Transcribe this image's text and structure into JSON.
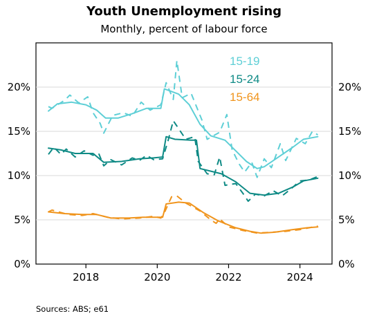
{
  "chart": {
    "title": "Youth Unemployment rising",
    "subtitle": "Monthly, percent of labour force",
    "source": "Sources: ABS; e61"
  },
  "chart_data": {
    "type": "line",
    "title": "Youth Unemployment rising",
    "subtitle": "Monthly, percent of labour force",
    "xlabel": "",
    "ylabel": "",
    "xlim": [
      2016.6,
      2024.9
    ],
    "ylim": [
      0,
      25
    ],
    "x_ticks": [
      2018,
      2020,
      2022,
      2024
    ],
    "x_tick_labels": [
      "2018",
      "2020",
      "2022",
      "2024"
    ],
    "y_ticks": [
      0,
      5,
      10,
      15,
      20
    ],
    "y_tick_labels": [
      "0%",
      "5%",
      "10%",
      "15%",
      "20%"
    ],
    "grid": "horizontal",
    "legend_position": "top-right",
    "series": [
      {
        "name": "15-19",
        "color": "#5ecfd6",
        "trend": [
          [
            2016.95,
            17.3
          ],
          [
            2017.2,
            18.1
          ],
          [
            2017.6,
            18.3
          ],
          [
            2018.0,
            18.0
          ],
          [
            2018.3,
            17.4
          ],
          [
            2018.55,
            16.5
          ],
          [
            2018.9,
            16.5
          ],
          [
            2019.3,
            17.0
          ],
          [
            2019.7,
            17.6
          ],
          [
            2020.1,
            17.6
          ],
          [
            2020.2,
            19.8
          ],
          [
            2020.6,
            19.2
          ],
          [
            2020.9,
            18.0
          ],
          [
            2021.2,
            15.8
          ],
          [
            2021.5,
            14.5
          ],
          [
            2021.9,
            14.0
          ],
          [
            2022.2,
            12.8
          ],
          [
            2022.5,
            11.6
          ],
          [
            2022.8,
            10.8
          ],
          [
            2023.0,
            11.0
          ],
          [
            2023.4,
            12.1
          ],
          [
            2023.8,
            13.2
          ],
          [
            2024.1,
            14.1
          ],
          [
            2024.5,
            14.4
          ]
        ],
        "monthly": [
          [
            2016.95,
            17.8
          ],
          [
            2017.05,
            17.6
          ],
          [
            2017.4,
            18.5
          ],
          [
            2017.55,
            19.1
          ],
          [
            2017.8,
            18.2
          ],
          [
            2018.05,
            18.9
          ],
          [
            2018.2,
            17.1
          ],
          [
            2018.4,
            15.9
          ],
          [
            2018.5,
            14.8
          ],
          [
            2018.75,
            16.8
          ],
          [
            2019.05,
            17.1
          ],
          [
            2019.3,
            16.7
          ],
          [
            2019.55,
            18.3
          ],
          [
            2019.8,
            17.4
          ],
          [
            2020.1,
            18.0
          ],
          [
            2020.25,
            20.5
          ],
          [
            2020.45,
            18.6
          ],
          [
            2020.55,
            23.0
          ],
          [
            2020.7,
            18.8
          ],
          [
            2020.95,
            19.3
          ],
          [
            2021.25,
            16.3
          ],
          [
            2021.4,
            14.1
          ],
          [
            2021.75,
            14.9
          ],
          [
            2021.95,
            16.9
          ],
          [
            2022.1,
            12.9
          ],
          [
            2022.3,
            11.3
          ],
          [
            2022.45,
            10.4
          ],
          [
            2022.65,
            11.5
          ],
          [
            2022.8,
            9.8
          ],
          [
            2023.0,
            11.9
          ],
          [
            2023.2,
            10.9
          ],
          [
            2023.45,
            13.6
          ],
          [
            2023.6,
            11.7
          ],
          [
            2023.9,
            14.2
          ],
          [
            2024.15,
            13.6
          ],
          [
            2024.35,
            15.0
          ],
          [
            2024.5,
            14.6
          ]
        ]
      },
      {
        "name": "15-24",
        "color": "#0e8a85",
        "trend": [
          [
            2016.95,
            13.1
          ],
          [
            2017.3,
            12.9
          ],
          [
            2017.7,
            12.5
          ],
          [
            2018.2,
            12.5
          ],
          [
            2018.5,
            11.5
          ],
          [
            2019.0,
            11.6
          ],
          [
            2019.5,
            11.9
          ],
          [
            2019.9,
            12.0
          ],
          [
            2020.15,
            12.1
          ],
          [
            2020.25,
            14.4
          ],
          [
            2020.5,
            14.1
          ],
          [
            2020.95,
            14.0
          ],
          [
            2021.1,
            14.0
          ],
          [
            2021.2,
            10.8
          ],
          [
            2021.5,
            10.5
          ],
          [
            2021.8,
            10.2
          ],
          [
            2022.2,
            9.3
          ],
          [
            2022.6,
            8.0
          ],
          [
            2023.0,
            7.8
          ],
          [
            2023.4,
            8.0
          ],
          [
            2023.8,
            8.7
          ],
          [
            2024.1,
            9.4
          ],
          [
            2024.5,
            9.7
          ]
        ],
        "monthly": [
          [
            2016.95,
            12.4
          ],
          [
            2017.1,
            13.2
          ],
          [
            2017.3,
            12.4
          ],
          [
            2017.45,
            13.0
          ],
          [
            2017.7,
            12.1
          ],
          [
            2017.95,
            12.8
          ],
          [
            2018.2,
            12.3
          ],
          [
            2018.35,
            12.6
          ],
          [
            2018.5,
            11.1
          ],
          [
            2018.7,
            11.8
          ],
          [
            2019.0,
            11.2
          ],
          [
            2019.3,
            12.0
          ],
          [
            2019.5,
            11.7
          ],
          [
            2019.7,
            12.3
          ],
          [
            2019.9,
            11.8
          ],
          [
            2020.15,
            11.9
          ],
          [
            2020.3,
            13.9
          ],
          [
            2020.45,
            16.2
          ],
          [
            2020.6,
            15.3
          ],
          [
            2020.8,
            14.1
          ],
          [
            2021.05,
            14.4
          ],
          [
            2021.15,
            11.6
          ],
          [
            2021.4,
            10.2
          ],
          [
            2021.6,
            10.1
          ],
          [
            2021.75,
            12.1
          ],
          [
            2021.9,
            8.9
          ],
          [
            2022.2,
            9.1
          ],
          [
            2022.4,
            8.0
          ],
          [
            2022.55,
            7.1
          ],
          [
            2022.75,
            7.9
          ],
          [
            2023.0,
            7.7
          ],
          [
            2023.25,
            8.3
          ],
          [
            2023.5,
            7.7
          ],
          [
            2023.75,
            8.5
          ],
          [
            2024.0,
            9.4
          ],
          [
            2024.25,
            9.5
          ],
          [
            2024.5,
            9.9
          ]
        ]
      },
      {
        "name": "15-64",
        "color": "#f0941c",
        "trend": [
          [
            2016.95,
            5.9
          ],
          [
            2017.4,
            5.7
          ],
          [
            2017.9,
            5.6
          ],
          [
            2018.3,
            5.6
          ],
          [
            2018.7,
            5.2
          ],
          [
            2019.2,
            5.2
          ],
          [
            2019.6,
            5.3
          ],
          [
            2020.15,
            5.3
          ],
          [
            2020.25,
            6.8
          ],
          [
            2020.6,
            7.0
          ],
          [
            2020.9,
            6.9
          ],
          [
            2021.3,
            5.8
          ],
          [
            2021.7,
            4.9
          ],
          [
            2022.2,
            4.1
          ],
          [
            2022.6,
            3.7
          ],
          [
            2022.9,
            3.5
          ],
          [
            2023.3,
            3.6
          ],
          [
            2023.8,
            3.9
          ],
          [
            2024.2,
            4.1
          ],
          [
            2024.5,
            4.2
          ]
        ],
        "monthly": [
          [
            2016.95,
            5.9
          ],
          [
            2017.05,
            6.1
          ],
          [
            2017.5,
            5.6
          ],
          [
            2017.9,
            5.5
          ],
          [
            2018.2,
            5.7
          ],
          [
            2018.6,
            5.3
          ],
          [
            2019.0,
            5.1
          ],
          [
            2019.5,
            5.2
          ],
          [
            2019.9,
            5.4
          ],
          [
            2020.1,
            5.2
          ],
          [
            2020.2,
            5.8
          ],
          [
            2020.4,
            7.6
          ],
          [
            2020.55,
            7.7
          ],
          [
            2020.8,
            6.9
          ],
          [
            2021.2,
            6.0
          ],
          [
            2021.5,
            5.0
          ],
          [
            2021.65,
            4.6
          ],
          [
            2021.75,
            5.1
          ],
          [
            2022.0,
            4.2
          ],
          [
            2022.4,
            3.8
          ],
          [
            2022.8,
            3.5
          ],
          [
            2023.2,
            3.6
          ],
          [
            2023.6,
            3.7
          ],
          [
            2024.0,
            3.9
          ],
          [
            2024.5,
            4.3
          ]
        ]
      }
    ]
  }
}
